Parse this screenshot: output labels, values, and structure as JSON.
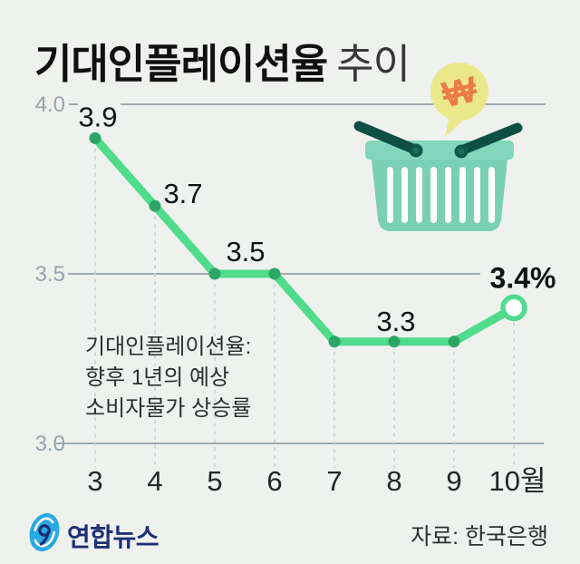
{
  "header": {
    "title_bold": "기대인플레이션율",
    "title_light": "추이"
  },
  "chart_data": {
    "type": "line",
    "title": "기대인플레이션율 추이",
    "categories": [
      "3",
      "4",
      "5",
      "6",
      "7",
      "8",
      "9",
      "10월"
    ],
    "values": [
      3.9,
      3.7,
      3.5,
      3.5,
      3.3,
      3.3,
      3.3,
      3.4
    ],
    "unit": "%",
    "y_ticks": [
      4.0,
      3.5,
      3.0
    ],
    "ylim": [
      2.9,
      4.1
    ],
    "point_labels": [
      {
        "index": 0,
        "text": "3.9",
        "emphasis": false
      },
      {
        "index": 1,
        "text": "3.7",
        "emphasis": false
      },
      {
        "index": 2,
        "text": "3.5",
        "emphasis": false
      },
      {
        "index": 5,
        "text": "3.3",
        "emphasis": false
      },
      {
        "index": 7,
        "text": "3.4%",
        "emphasis": true
      }
    ],
    "line_color": "#4fdc8b",
    "marker_color": "#2ca666",
    "last_marker": "open",
    "grid": true,
    "legend": false,
    "xlabel": "",
    "ylabel": ""
  },
  "annotation": {
    "lines": [
      "기대인플레이션율:",
      "향후 1년의 예상",
      "소비자물가 상승률"
    ]
  },
  "illustration": {
    "name": "shopping-basket-with-won-bubble",
    "won_symbol": "₩",
    "colors": {
      "basket": "#79d0b5",
      "rim": "#82d6bc",
      "handle": "#0d4f45",
      "bubble": "#ebe88c",
      "won": "#ec7b4a"
    }
  },
  "footer": {
    "logo_text": "연합뉴스",
    "source": "자료: 한국은행"
  }
}
